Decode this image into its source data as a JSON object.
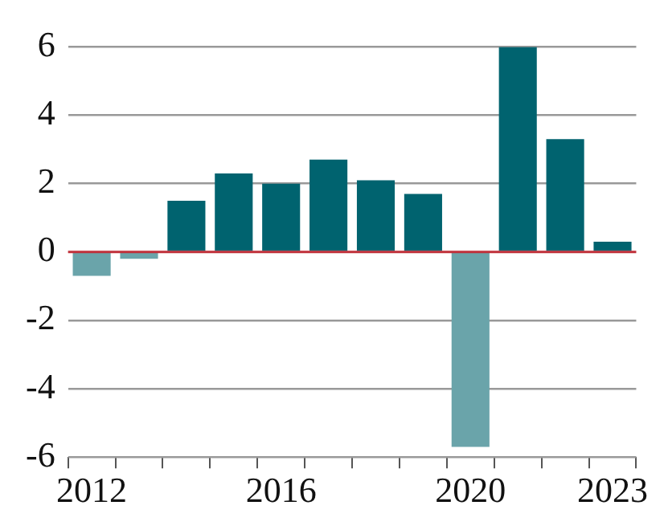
{
  "chart_data": {
    "type": "bar",
    "categories": [
      "2012",
      null,
      null,
      null,
      "2016",
      null,
      null,
      null,
      "2020",
      null,
      null,
      "2023"
    ],
    "values": [
      -0.7,
      -0.2,
      1.5,
      2.3,
      2.0,
      2.7,
      2.1,
      1.7,
      -5.7,
      6.0,
      3.3,
      0.3
    ],
    "colors": [
      "#6aa4aa",
      "#6aa4aa",
      "#00636f",
      "#00636f",
      "#00636f",
      "#00636f",
      "#00636f",
      "#00636f",
      "#6aa4aa",
      "#00636f",
      "#00636f",
      "#00636f"
    ],
    "ylim": [
      -6,
      6
    ],
    "yticks": [
      -6,
      -4,
      -2,
      0,
      2,
      4,
      6
    ],
    "grid": "y",
    "legend": false,
    "ref_lines": [
      {
        "axis": "y",
        "value": 0,
        "color": "#c0303a"
      }
    ]
  }
}
